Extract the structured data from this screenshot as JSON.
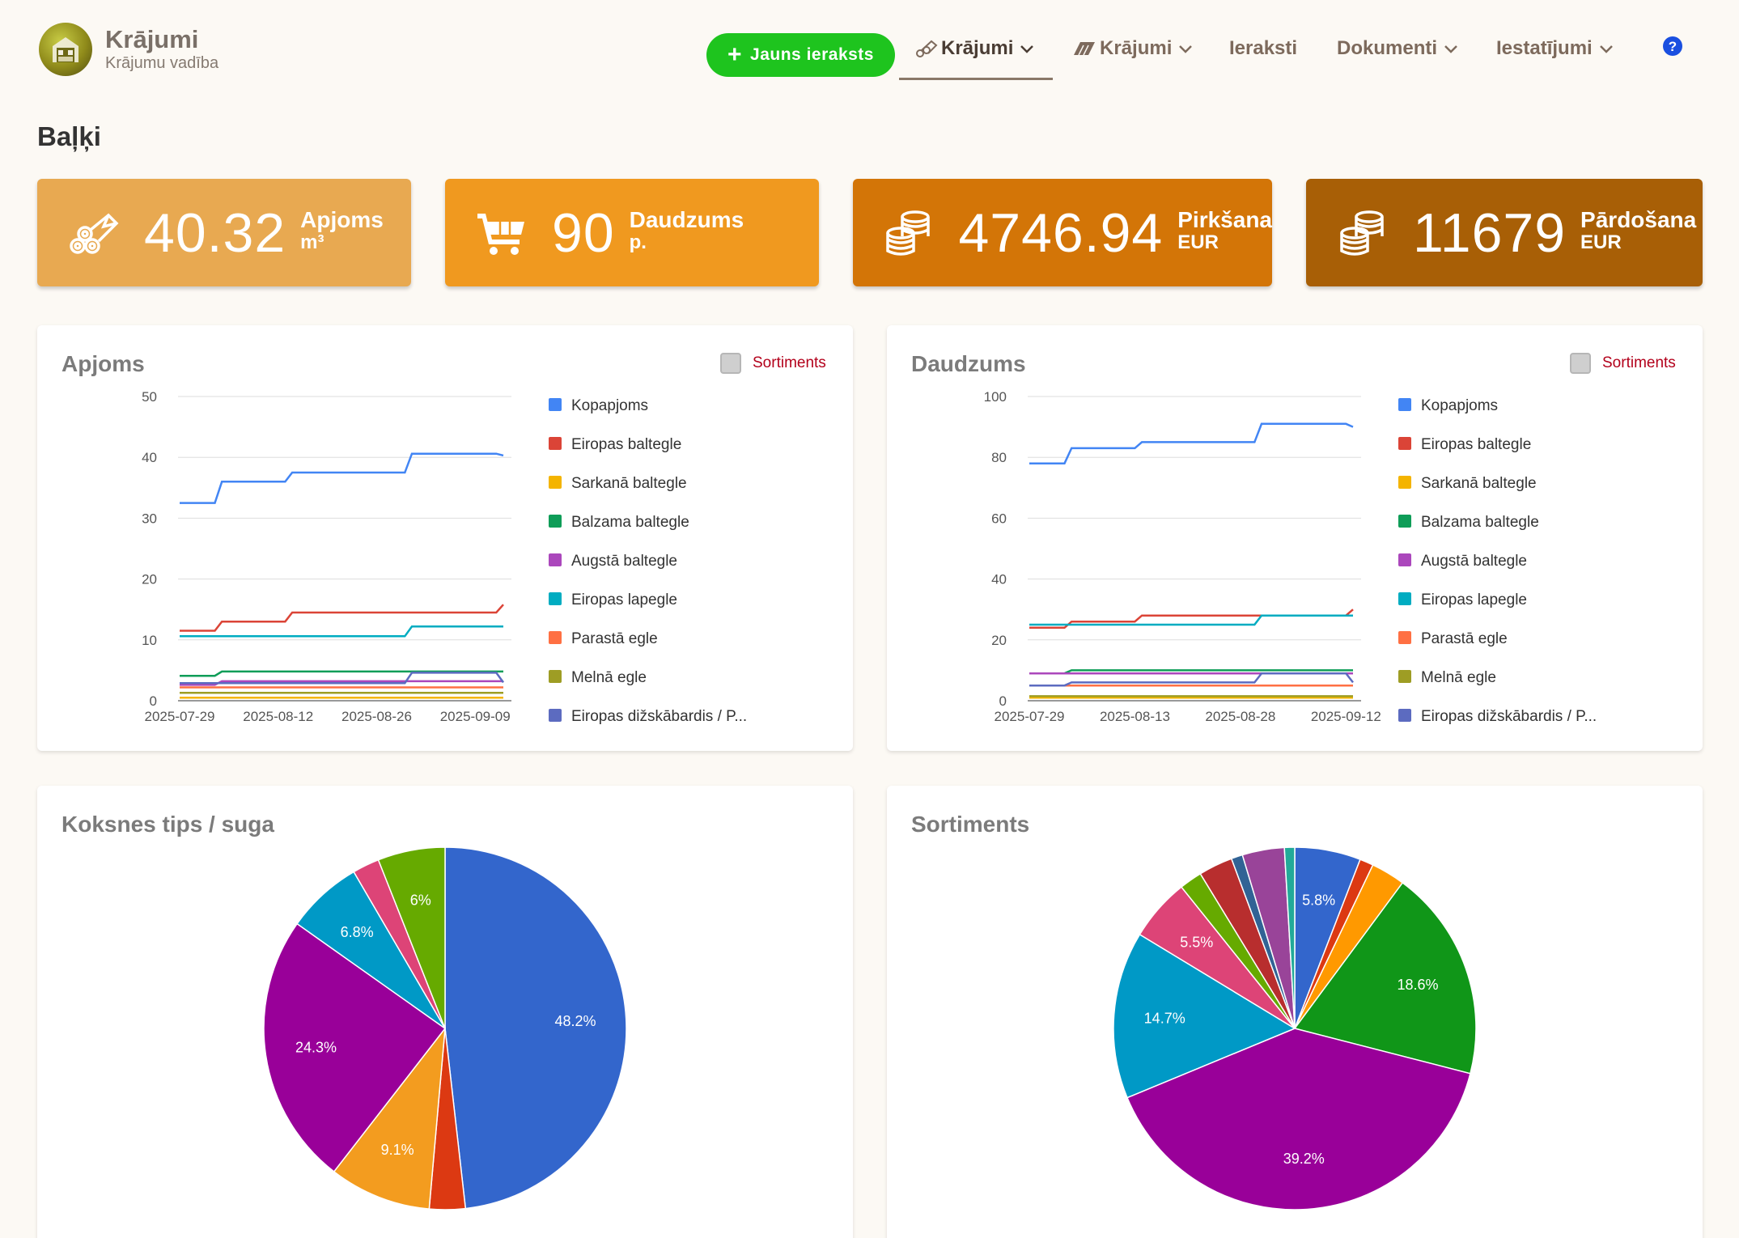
{
  "brand": {
    "title": "Krājumi",
    "subtitle": "Krājumu vadība"
  },
  "nav": {
    "new_button": "Jauns ieraksts",
    "items": [
      {
        "label": "Krājumi",
        "icon": "logs-icon",
        "active": true
      },
      {
        "label": "Krājumi",
        "icon": "planks-icon",
        "active": false
      },
      {
        "label": "Ieraksti"
      },
      {
        "label": "Dokumenti"
      },
      {
        "label": "Iestatījumi"
      }
    ],
    "help_icon": "help-icon"
  },
  "page_title": "Baļķi",
  "stats": [
    {
      "value": "40.32",
      "label": "Apjoms",
      "unit": "m³",
      "color": "#e8a951",
      "icon": "logs-icon"
    },
    {
      "value": "90",
      "label": "Daudzums",
      "unit": "p.",
      "color": "#f0991f",
      "icon": "cart-icon"
    },
    {
      "value": "4746.94",
      "label": "Pirkšana",
      "unit": "EUR",
      "color": "#d37507",
      "icon": "coins-icon"
    },
    {
      "value": "11679",
      "label": "Pārdošana",
      "unit": "EUR",
      "color": "#a85f06",
      "icon": "coins-icon"
    }
  ],
  "toggle_label": "Sortiments",
  "legend": [
    {
      "name": "Kopapjoms",
      "color": "#4285f4"
    },
    {
      "name": "Eiropas baltegle",
      "color": "#db4437"
    },
    {
      "name": "Sarkanā baltegle",
      "color": "#f4b400"
    },
    {
      "name": "Balzama baltegle",
      "color": "#0f9d58"
    },
    {
      "name": "Augstā baltegle",
      "color": "#ab47bc"
    },
    {
      "name": "Eiropas lapegle",
      "color": "#00acc1"
    },
    {
      "name": "Parastā egle",
      "color": "#ff7043"
    },
    {
      "name": "Melnā egle",
      "color": "#9e9d24"
    },
    {
      "name": "Eiropas dižskābardis / P...",
      "color": "#5c6bc0"
    }
  ],
  "chart_data": [
    {
      "type": "line",
      "title": "Apjoms",
      "ylim": [
        0,
        50
      ],
      "yticks": [
        "0",
        "10",
        "20",
        "30",
        "40",
        "50"
      ],
      "xticks": [
        "2025-07-29",
        "2025-08-12",
        "2025-08-26",
        "2025-09-09"
      ],
      "x": [
        "2025-07-29",
        "2025-08-03",
        "2025-08-04",
        "2025-08-13",
        "2025-08-14",
        "2025-08-30",
        "2025-08-31",
        "2025-09-12",
        "2025-09-13"
      ],
      "series": [
        {
          "name": "Kopapjoms",
          "values": [
            32.5,
            32.5,
            36,
            36,
            37.5,
            37.5,
            40.6,
            40.6,
            40.3
          ]
        },
        {
          "name": "Eiropas baltegle",
          "values": [
            11.5,
            11.5,
            13,
            13,
            14.5,
            14.5,
            14.5,
            14.5,
            15.8
          ]
        },
        {
          "name": "Sarkanā baltegle",
          "values": [
            0.5,
            0.5,
            0.5,
            0.5,
            0.5,
            0.5,
            0.5,
            0.5,
            0.5
          ]
        },
        {
          "name": "Balzama baltegle",
          "values": [
            4.1,
            4.1,
            4.8,
            4.8,
            4.8,
            4.8,
            4.8,
            4.8,
            4.8
          ]
        },
        {
          "name": "Augstā baltegle",
          "values": [
            2.6,
            2.6,
            3.2,
            3.2,
            3.2,
            3.2,
            3.2,
            3.2,
            3.2
          ]
        },
        {
          "name": "Eiropas lapegle",
          "values": [
            10.6,
            10.6,
            10.6,
            10.6,
            10.6,
            10.6,
            12.2,
            12.2,
            12.2
          ]
        },
        {
          "name": "Parastā egle",
          "values": [
            2.2,
            2.2,
            2.2,
            2.2,
            2.2,
            2.2,
            2.2,
            2.2,
            2.2
          ]
        },
        {
          "name": "Melnā egle",
          "values": [
            1.3,
            1.3,
            1.3,
            1.3,
            1.3,
            1.3,
            1.3,
            1.3,
            1.3
          ]
        },
        {
          "name": "Eiropas dižskābardis / P...",
          "values": [
            2.9,
            2.9,
            2.9,
            2.9,
            2.9,
            2.9,
            4.6,
            4.6,
            3.0
          ]
        }
      ]
    },
    {
      "type": "line",
      "title": "Daudzums",
      "ylim": [
        0,
        100
      ],
      "yticks": [
        "0",
        "20",
        "40",
        "60",
        "80",
        "100"
      ],
      "xticks": [
        "2025-07-29",
        "2025-08-13",
        "2025-08-28",
        "2025-09-12"
      ],
      "x": [
        "2025-07-29",
        "2025-08-03",
        "2025-08-04",
        "2025-08-13",
        "2025-08-14",
        "2025-08-30",
        "2025-08-31",
        "2025-09-12",
        "2025-09-13"
      ],
      "series": [
        {
          "name": "Kopapjoms",
          "values": [
            78,
            78,
            83,
            83,
            85,
            85,
            91,
            91,
            90
          ]
        },
        {
          "name": "Eiropas baltegle",
          "values": [
            24,
            24,
            26,
            26,
            28,
            28,
            28,
            28,
            30
          ]
        },
        {
          "name": "Sarkanā baltegle",
          "values": [
            1,
            1,
            1,
            1,
            1,
            1,
            1,
            1,
            1
          ]
        },
        {
          "name": "Balzama baltegle",
          "values": [
            9,
            9,
            10,
            10,
            10,
            10,
            10,
            10,
            10
          ]
        },
        {
          "name": "Augstā baltegle",
          "values": [
            9,
            9,
            9,
            9,
            9,
            9,
            9,
            9,
            9
          ]
        },
        {
          "name": "Eiropas lapegle",
          "values": [
            25,
            25,
            25,
            25,
            25,
            25,
            28,
            28,
            28
          ]
        },
        {
          "name": "Parastā egle",
          "values": [
            5,
            5,
            5,
            5,
            5,
            5,
            5,
            5,
            5
          ]
        },
        {
          "name": "Melnā egle",
          "values": [
            1.5,
            1.5,
            1.5,
            1.5,
            1.5,
            1.5,
            1.5,
            1.5,
            1.5
          ]
        },
        {
          "name": "Eiropas dižskābardis / P...",
          "values": [
            5,
            5,
            6,
            6,
            6,
            6,
            9,
            9,
            6
          ]
        }
      ]
    },
    {
      "type": "pie",
      "title": "Koksnes tips / suga",
      "slices": [
        {
          "value": 48.2,
          "label": "48.2%",
          "color": "#3366cc"
        },
        {
          "value": 3.2,
          "label": "",
          "color": "#dc3912"
        },
        {
          "value": 9.1,
          "label": "9.1%",
          "color": "#f39c1f"
        },
        {
          "value": 24.3,
          "label": "24.3%",
          "color": "#990099"
        },
        {
          "value": 6.8,
          "label": "6.8%",
          "color": "#0099c6"
        },
        {
          "value": 2.4,
          "label": "",
          "color": "#dd4477"
        },
        {
          "value": 6.0,
          "label": "6%",
          "color": "#66aa00"
        }
      ]
    },
    {
      "type": "pie",
      "title": "Sortiments",
      "slices": [
        {
          "value": 5.8,
          "label": "5.8%",
          "color": "#3366cc"
        },
        {
          "value": 1.2,
          "label": "",
          "color": "#dc3912"
        },
        {
          "value": 3.0,
          "label": "",
          "color": "#ff9900"
        },
        {
          "value": 18.6,
          "label": "18.6%",
          "color": "#109618"
        },
        {
          "value": 39.2,
          "label": "39.2%",
          "color": "#990099"
        },
        {
          "value": 14.7,
          "label": "14.7%",
          "color": "#0099c6"
        },
        {
          "value": 5.5,
          "label": "5.5%",
          "color": "#dd4477"
        },
        {
          "value": 2.0,
          "label": "",
          "color": "#66aa00"
        },
        {
          "value": 3.0,
          "label": "",
          "color": "#b82e2e"
        },
        {
          "value": 1.0,
          "label": "",
          "color": "#316395"
        },
        {
          "value": 3.7,
          "label": "",
          "color": "#994499"
        },
        {
          "value": 0.9,
          "label": "",
          "color": "#22aa99"
        }
      ]
    }
  ]
}
